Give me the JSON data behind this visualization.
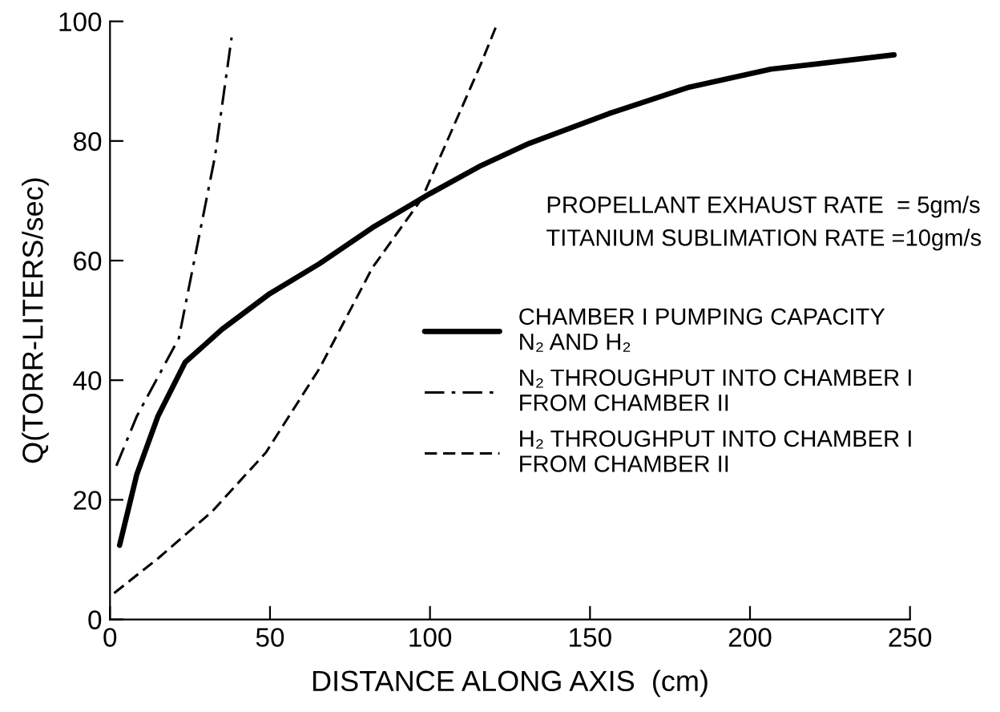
{
  "chart_data": {
    "type": "line",
    "xlabel": "DISTANCE ALONG AXIS  (cm)",
    "ylabel": "Q(TORR-LITERS/sec)",
    "xlim": [
      0,
      250
    ],
    "ylim": [
      0,
      100
    ],
    "xticks": [
      0,
      50,
      100,
      150,
      200,
      250
    ],
    "yticks": [
      0,
      20,
      40,
      60,
      80,
      100
    ],
    "grid": false,
    "legend": "right",
    "marker": "none",
    "annotations": [
      "PROPELLANT EXHAUST RATE  = 5gm/s",
      "TITANIUM SUBLIMATION RATE =10gm/s"
    ],
    "series": [
      {
        "name": "CHAMBER I PUMPING CAPACITY\nN₂ AND H₂",
        "color": "#000000",
        "line_style": "solid",
        "x": [
          3,
          8.4,
          15,
          23.5,
          35,
          50,
          65.5,
          82,
          100,
          116,
          131,
          156,
          181,
          206.5,
          245
        ],
        "values": [
          12.4,
          24.3,
          34,
          43,
          48.5,
          54.5,
          59.5,
          65.5,
          71.2,
          75.9,
          79.6,
          84.6,
          89,
          92,
          94.4
        ]
      },
      {
        "name": "N₂ THROUGHPUT INTO CHAMBER I\nFROM CHAMBER II",
        "color": "#000000",
        "line_style": "dashdot",
        "x": [
          2,
          8.4,
          21.5,
          32.8,
          38
        ],
        "values": [
          25.7,
          34,
          47,
          77.4,
          97.3
        ]
      },
      {
        "name": "H₂ THROUGHPUT INTO CHAMBER I\nFROM CHAMBER II",
        "color": "#000000",
        "line_style": "dashed",
        "x": [
          1.3,
          15,
          32,
          48.7,
          65.5,
          82,
          97.5,
          116,
          121
        ],
        "values": [
          4.4,
          10.2,
          18.1,
          27.9,
          42,
          58.8,
          70.4,
          93,
          99.6
        ]
      }
    ]
  }
}
